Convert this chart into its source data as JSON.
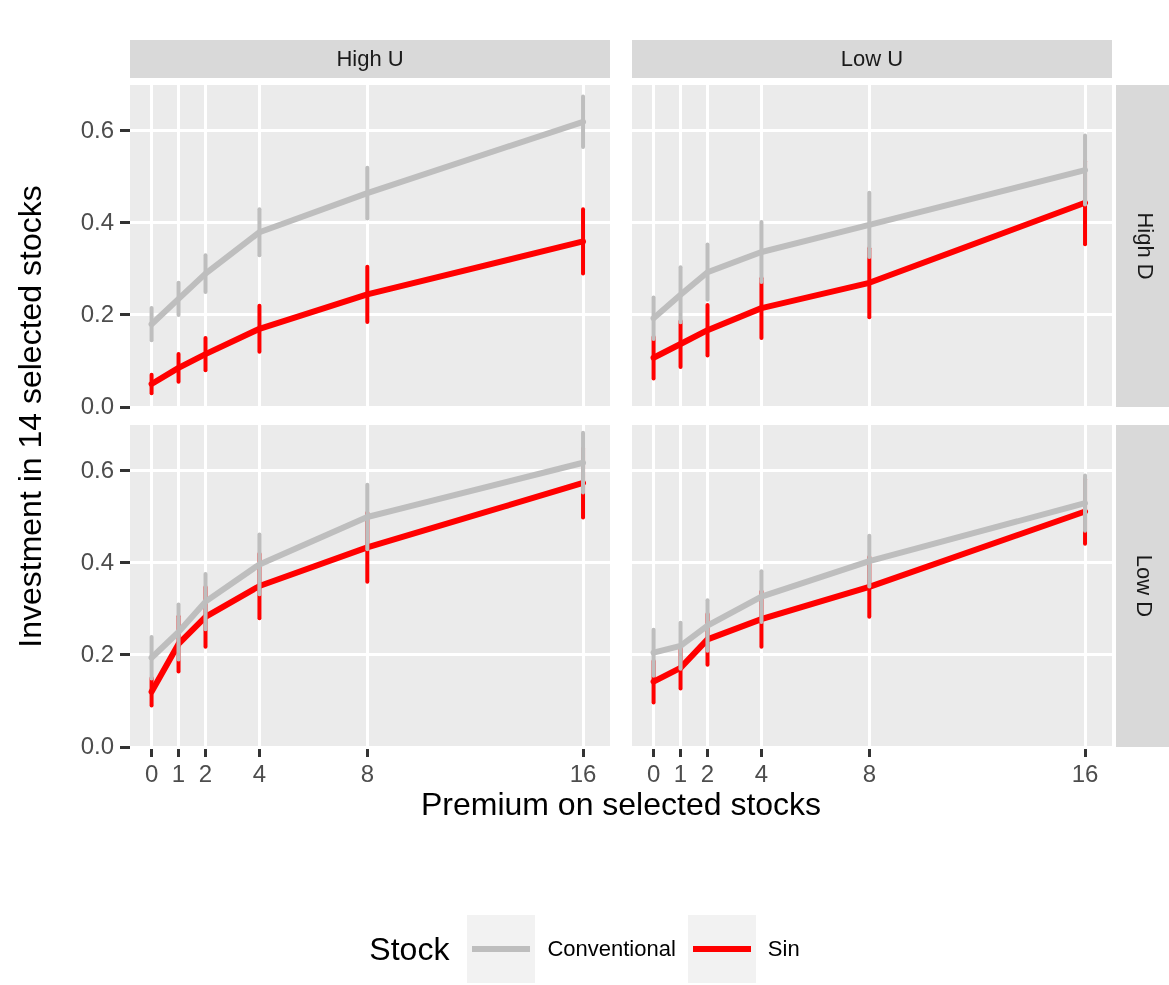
{
  "chart_data": [
    {
      "type": "line",
      "title": "High U",
      "x": [
        0,
        1,
        2,
        4,
        8,
        16
      ],
      "xlim": [
        -0.8,
        17
      ],
      "xticks": [
        0,
        1,
        2,
        4,
        8,
        16
      ],
      "ylim": [
        0,
        0.7
      ],
      "yticks": [
        {
          "value": 0,
          "label": "0.0"
        },
        {
          "value": 0.2,
          "label": "0.2"
        },
        {
          "value": 0.4,
          "label": "0.4"
        },
        {
          "value": 0.6,
          "label": "0.6"
        }
      ],
      "grid": true,
      "tick_labels": "y",
      "marker": "none",
      "series": [
        {
          "color": "#bebebe",
          "values": [
            0.18,
            0.235,
            0.29,
            0.38,
            0.465,
            0.62
          ],
          "errors": [
            0.035,
            0.035,
            0.04,
            0.05,
            0.055,
            0.055
          ]
        },
        {
          "color": "#ff0000",
          "values": [
            0.05,
            0.085,
            0.115,
            0.17,
            0.245,
            0.36
          ],
          "errors": [
            0.02,
            0.03,
            0.035,
            0.05,
            0.06,
            0.07
          ]
        }
      ]
    },
    {
      "type": "line",
      "title": "Low U",
      "y2label": "High D",
      "x": [
        0,
        1,
        2,
        4,
        8,
        16
      ],
      "xlim": [
        -0.8,
        17
      ],
      "xticks": [
        0,
        1,
        2,
        4,
        8,
        16
      ],
      "ylim": [
        0,
        0.7
      ],
      "yticks": [
        0,
        0.2,
        0.4,
        0.6
      ],
      "grid": true,
      "tick_labels": false,
      "marker": "none",
      "series": [
        {
          "color": "#bebebe",
          "values": [
            0.193,
            0.244,
            0.293,
            0.337,
            0.396,
            0.515
          ],
          "errors": [
            0.045,
            0.06,
            0.06,
            0.065,
            0.07,
            0.075
          ]
        },
        {
          "color": "#ff0000",
          "values": [
            0.107,
            0.137,
            0.167,
            0.215,
            0.27,
            0.444
          ],
          "errors": [
            0.045,
            0.05,
            0.055,
            0.065,
            0.075,
            0.09
          ]
        }
      ]
    },
    {
      "type": "line",
      "xlabel": "Premium on selected stocks",
      "ylabel": "Investment in 14 selected stocks",
      "x": [
        0,
        1,
        2,
        4,
        8,
        16
      ],
      "xlim": [
        -0.8,
        17
      ],
      "xticks": [
        0,
        1,
        2,
        4,
        8,
        16
      ],
      "ylim": [
        0,
        0.7
      ],
      "yticks": [
        {
          "value": 0,
          "label": "0.0"
        },
        {
          "value": 0.2,
          "label": "0.2"
        },
        {
          "value": 0.4,
          "label": "0.4"
        },
        {
          "value": 0.6,
          "label": "0.6"
        }
      ],
      "grid": true,
      "marker": "none",
      "series": [
        {
          "color": "#bebebe",
          "values": [
            0.194,
            0.25,
            0.316,
            0.397,
            0.5,
            0.618
          ],
          "errors": [
            0.045,
            0.06,
            0.06,
            0.065,
            0.07,
            0.065
          ]
        },
        {
          "color": "#ff0000",
          "values": [
            0.12,
            0.224,
            0.283,
            0.35,
            0.434,
            0.574
          ],
          "errors": [
            0.03,
            0.06,
            0.065,
            0.07,
            0.075,
            0.075
          ]
        }
      ]
    },
    {
      "type": "line",
      "y2label": "Low D",
      "legend": "bottom",
      "legend_title": "Stock",
      "x": [
        0,
        1,
        2,
        4,
        8,
        16
      ],
      "xlim": [
        -0.8,
        17
      ],
      "xticks": [
        0,
        1,
        2,
        4,
        8,
        16
      ],
      "ylim": [
        0,
        0.7
      ],
      "yticks": [
        0,
        0.2,
        0.4,
        0.6
      ],
      "grid": true,
      "tick_labels": "x",
      "marker": "none",
      "series": [
        {
          "name": "Conventional",
          "color": "#bebebe",
          "values": [
            0.205,
            0.22,
            0.264,
            0.327,
            0.404,
            0.53
          ],
          "errors": [
            0.05,
            0.05,
            0.055,
            0.055,
            0.055,
            0.06
          ]
        },
        {
          "name": "Sin",
          "color": "#ff0000",
          "values": [
            0.142,
            0.172,
            0.234,
            0.278,
            0.348,
            0.512
          ],
          "errors": [
            0.045,
            0.045,
            0.055,
            0.06,
            0.065,
            0.07
          ]
        }
      ]
    }
  ]
}
